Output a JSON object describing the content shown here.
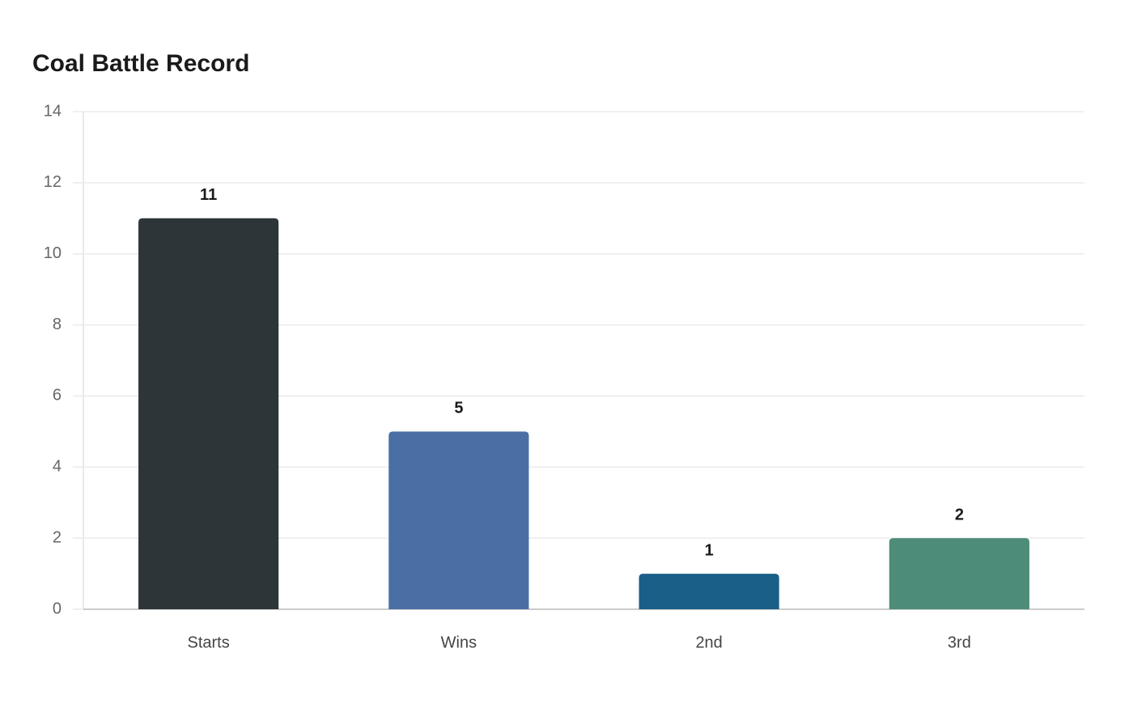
{
  "chart_data": {
    "type": "bar",
    "title": "Coal Battle Record",
    "categories": [
      "Starts",
      "Wins",
      "2nd",
      "3rd"
    ],
    "values": [
      11,
      5,
      1,
      2
    ],
    "colors": [
      "#2e3538",
      "#4a6fa5",
      "#1a5f88",
      "#4e8c7a"
    ],
    "ylim": [
      0,
      14
    ],
    "yticks": [
      0,
      2,
      4,
      6,
      8,
      10,
      12,
      14
    ],
    "grid": true
  }
}
